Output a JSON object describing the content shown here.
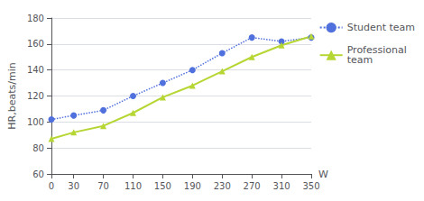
{
  "chart_data": {
    "type": "line",
    "x": [
      0,
      30,
      70,
      110,
      150,
      190,
      230,
      270,
      310,
      350
    ],
    "series": [
      {
        "name": "Student team",
        "values": [
          102,
          105,
          109,
          120,
          130,
          140,
          153,
          165,
          162,
          165
        ],
        "marker": "circle",
        "line_style": "dotted"
      },
      {
        "name": "Professional\nteam",
        "values": [
          87,
          92,
          97,
          107,
          119,
          128,
          139,
          150,
          159,
          166
        ],
        "marker": "triangle",
        "line_style": "solid"
      }
    ],
    "xlabel": "W",
    "ylabel": "HR,beats/min",
    "xlim": [
      0,
      350
    ],
    "xticks": [
      0,
      30,
      70,
      110,
      150,
      190,
      230,
      270,
      310,
      350
    ],
    "ylim": [
      60,
      180
    ],
    "yticks": [
      60,
      80,
      100,
      120,
      140,
      160,
      180
    ],
    "grid": true,
    "legend": "right"
  }
}
